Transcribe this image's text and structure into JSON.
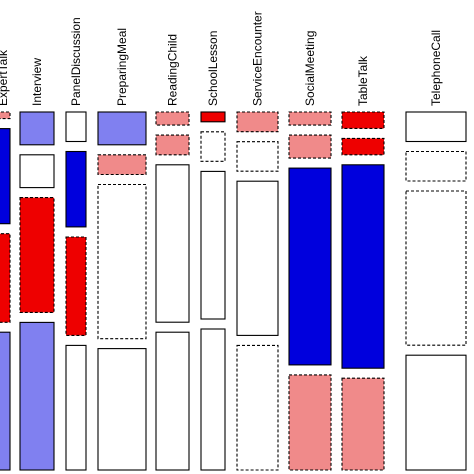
{
  "chart_data": {
    "type": "mosaic",
    "colors": {
      "strong_positive": "#0000dd",
      "positive": "#8080f0",
      "neutral": "#ffffff",
      "negative": "#f08a8a",
      "strong_negative": "#ee0000"
    },
    "columns": [
      {
        "label": "ExpertTalk",
        "cells": [
          {
            "share": 0.02,
            "fill": "negative",
            "dashed": true
          },
          {
            "share": 0.29,
            "fill": "strong_positive",
            "dashed": false
          },
          {
            "share": 0.27,
            "fill": "strong_negative",
            "dashed": true
          },
          {
            "share": 0.42,
            "fill": "positive",
            "dashed": false
          }
        ]
      },
      {
        "label": "Interview",
        "cells": [
          {
            "share": 0.1,
            "fill": "positive",
            "dashed": false
          },
          {
            "share": 0.1,
            "fill": "neutral",
            "dashed": false
          },
          {
            "share": 0.35,
            "fill": "strong_negative",
            "dashed": true
          },
          {
            "share": 0.45,
            "fill": "positive",
            "dashed": false
          }
        ]
      },
      {
        "label": "PanelDiscussion",
        "cells": [
          {
            "share": 0.09,
            "fill": "neutral",
            "dashed": false
          },
          {
            "share": 0.23,
            "fill": "strong_positive",
            "dashed": false
          },
          {
            "share": 0.3,
            "fill": "strong_negative",
            "dashed": true
          },
          {
            "share": 0.38,
            "fill": "neutral",
            "dashed": false
          }
        ]
      },
      {
        "label": "PreparingMeal",
        "cells": [
          {
            "share": 0.1,
            "fill": "positive",
            "dashed": false
          },
          {
            "share": 0.06,
            "fill": "negative",
            "dashed": true
          },
          {
            "share": 0.47,
            "fill": "neutral",
            "dashed": true
          },
          {
            "share": 0.37,
            "fill": "neutral",
            "dashed": false
          }
        ]
      },
      {
        "label": "ReadingChild",
        "cells": [
          {
            "share": 0.04,
            "fill": "negative",
            "dashed": true
          },
          {
            "share": 0.06,
            "fill": "negative",
            "dashed": true
          },
          {
            "share": 0.48,
            "fill": "neutral",
            "dashed": false
          },
          {
            "share": 0.42,
            "fill": "neutral",
            "dashed": false
          }
        ]
      },
      {
        "label": "SchoolLesson",
        "cells": [
          {
            "share": 0.03,
            "fill": "strong_negative",
            "dashed": false
          },
          {
            "share": 0.09,
            "fill": "neutral",
            "dashed": true
          },
          {
            "share": 0.45,
            "fill": "neutral",
            "dashed": false
          },
          {
            "share": 0.43,
            "fill": "neutral",
            "dashed": false
          }
        ]
      },
      {
        "label": "ServiceEncounter",
        "cells": [
          {
            "share": 0.06,
            "fill": "negative",
            "dashed": true
          },
          {
            "share": 0.09,
            "fill": "neutral",
            "dashed": true
          },
          {
            "share": 0.47,
            "fill": "neutral",
            "dashed": false
          },
          {
            "share": 0.38,
            "fill": "neutral",
            "dashed": true
          }
        ]
      },
      {
        "label": "SocialMeeting",
        "cells": [
          {
            "share": 0.04,
            "fill": "negative",
            "dashed": true
          },
          {
            "share": 0.07,
            "fill": "negative",
            "dashed": true
          },
          {
            "share": 0.6,
            "fill": "strong_positive",
            "dashed": false
          },
          {
            "share": 0.29,
            "fill": "negative",
            "dashed": true
          }
        ]
      },
      {
        "label": "TableTalk",
        "cells": [
          {
            "share": 0.05,
            "fill": "strong_negative",
            "dashed": true
          },
          {
            "share": 0.05,
            "fill": "strong_negative",
            "dashed": true
          },
          {
            "share": 0.62,
            "fill": "strong_positive",
            "dashed": false
          },
          {
            "share": 0.28,
            "fill": "negative",
            "dashed": true
          }
        ]
      },
      {
        "label": "TelephoneCall",
        "cells": [
          {
            "share": 0.09,
            "fill": "neutral",
            "dashed": false
          },
          {
            "share": 0.09,
            "fill": "neutral",
            "dashed": true
          },
          {
            "share": 0.47,
            "fill": "neutral",
            "dashed": true
          },
          {
            "share": 0.35,
            "fill": "neutral",
            "dashed": false
          }
        ]
      }
    ]
  }
}
